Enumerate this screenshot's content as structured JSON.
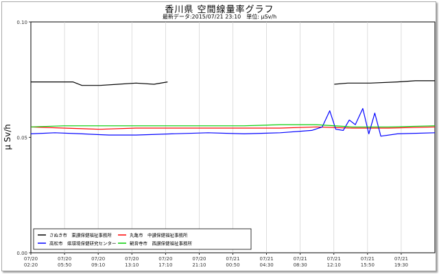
{
  "chart_data": {
    "type": "line",
    "title": "香川県 空間線量率グラフ",
    "subtitle": "最新データ:2015/07/21 23:10　単位: μSv/h",
    "ylabel": "μ Sv/h",
    "ylim": [
      0,
      0.1
    ],
    "y_ticks": [
      "0.00",
      "0.05",
      "0.10"
    ],
    "x_range": [
      "2015-07-20 02:20",
      "2015-07-21 23:10"
    ],
    "x_ticks": [
      {
        "date": "07/20",
        "time": "02:20"
      },
      {
        "date": "07/20",
        "time": "05:50"
      },
      {
        "date": "07/20",
        "time": "09:10"
      },
      {
        "date": "07/20",
        "time": "13:10"
      },
      {
        "date": "07/20",
        "time": "17:10"
      },
      {
        "date": "07/20",
        "time": "21:10"
      },
      {
        "date": "07/21",
        "time": "00:50"
      },
      {
        "date": "07/21",
        "time": "04:30"
      },
      {
        "date": "07/21",
        "time": "08:30"
      },
      {
        "date": "07/21",
        "time": "12:10"
      },
      {
        "date": "07/21",
        "time": "15:50"
      },
      {
        "date": "07/21",
        "time": "19:30"
      }
    ],
    "grid": "vertical",
    "legend_position": "bottom-left",
    "series": [
      {
        "name": "さぬき市　東讃保健福祉事務所",
        "color": "#000000",
        "points": [
          [
            "2015-07-20 02:20",
            0.074
          ],
          [
            "2015-07-20 04:20",
            0.074
          ],
          [
            "2015-07-20 07:00",
            0.074
          ],
          [
            "2015-07-20 08:00",
            0.0725
          ],
          [
            "2015-07-20 10:00",
            0.0725
          ],
          [
            "2015-07-20 12:00",
            0.073
          ],
          [
            "2015-07-20 14:00",
            0.0735
          ],
          [
            "2015-07-20 16:00",
            0.073
          ],
          [
            "2015-07-20 17:30",
            0.074
          ],
          [
            "2015-07-20 18:00",
            null
          ],
          [
            "2015-07-21 11:50",
            null
          ],
          [
            "2015-07-21 12:00",
            0.073
          ],
          [
            "2015-07-21 13:30",
            0.0735
          ],
          [
            "2015-07-21 16:00",
            0.0735
          ],
          [
            "2015-07-21 19:00",
            0.074
          ],
          [
            "2015-07-21 21:00",
            0.0745
          ],
          [
            "2015-07-21 23:10",
            0.0745
          ]
        ]
      },
      {
        "name": "丸亀市　中讃保健福祉事務所",
        "color": "#ff0000",
        "points": [
          [
            "2015-07-20 02:20",
            0.0545
          ],
          [
            "2015-07-20 06:00",
            0.054
          ],
          [
            "2015-07-20 10:00",
            0.0535
          ],
          [
            "2015-07-20 14:00",
            0.054
          ],
          [
            "2015-07-20 18:00",
            0.054
          ],
          [
            "2015-07-20 22:00",
            0.054
          ],
          [
            "2015-07-21 02:00",
            0.054
          ],
          [
            "2015-07-21 06:00",
            0.054
          ],
          [
            "2015-07-21 10:00",
            0.0545
          ],
          [
            "2015-07-21 14:00",
            0.054
          ],
          [
            "2015-07-21 18:00",
            0.054
          ],
          [
            "2015-07-21 23:10",
            0.0545
          ]
        ]
      },
      {
        "name": "高松市　県環境保健研究センター",
        "color": "#0000ff",
        "points": [
          [
            "2015-07-20 02:20",
            0.0515
          ],
          [
            "2015-07-20 05:00",
            0.052
          ],
          [
            "2015-07-20 08:00",
            0.0515
          ],
          [
            "2015-07-20 11:00",
            0.051
          ],
          [
            "2015-07-20 14:00",
            0.051
          ],
          [
            "2015-07-20 18:00",
            0.0515
          ],
          [
            "2015-07-20 22:00",
            0.052
          ],
          [
            "2015-07-21 02:00",
            0.0515
          ],
          [
            "2015-07-21 06:00",
            0.052
          ],
          [
            "2015-07-21 09:30",
            0.053
          ],
          [
            "2015-07-21 10:40",
            0.0545
          ],
          [
            "2015-07-21 11:30",
            0.0615
          ],
          [
            "2015-07-21 12:10",
            0.0535
          ],
          [
            "2015-07-21 13:00",
            0.053
          ],
          [
            "2015-07-21 13:40",
            0.0575
          ],
          [
            "2015-07-21 14:20",
            0.0555
          ],
          [
            "2015-07-21 15:10",
            0.0625
          ],
          [
            "2015-07-21 15:50",
            0.0515
          ],
          [
            "2015-07-21 16:30",
            0.0605
          ],
          [
            "2015-07-21 17:10",
            0.0505
          ],
          [
            "2015-07-21 19:00",
            0.0515
          ],
          [
            "2015-07-21 23:10",
            0.052
          ]
        ]
      },
      {
        "name": "観音寺市　西讃保健福祉事務所",
        "color": "#00cc00",
        "points": [
          [
            "2015-07-20 02:20",
            0.0545
          ],
          [
            "2015-07-20 06:00",
            0.055
          ],
          [
            "2015-07-20 10:00",
            0.055
          ],
          [
            "2015-07-20 14:00",
            0.055
          ],
          [
            "2015-07-20 18:00",
            0.055
          ],
          [
            "2015-07-20 22:00",
            0.055
          ],
          [
            "2015-07-21 02:00",
            0.055
          ],
          [
            "2015-07-21 06:00",
            0.0555
          ],
          [
            "2015-07-21 10:00",
            0.0555
          ],
          [
            "2015-07-21 14:00",
            0.0545
          ],
          [
            "2015-07-21 18:00",
            0.0545
          ],
          [
            "2015-07-21 23:10",
            0.055
          ]
        ]
      }
    ]
  }
}
